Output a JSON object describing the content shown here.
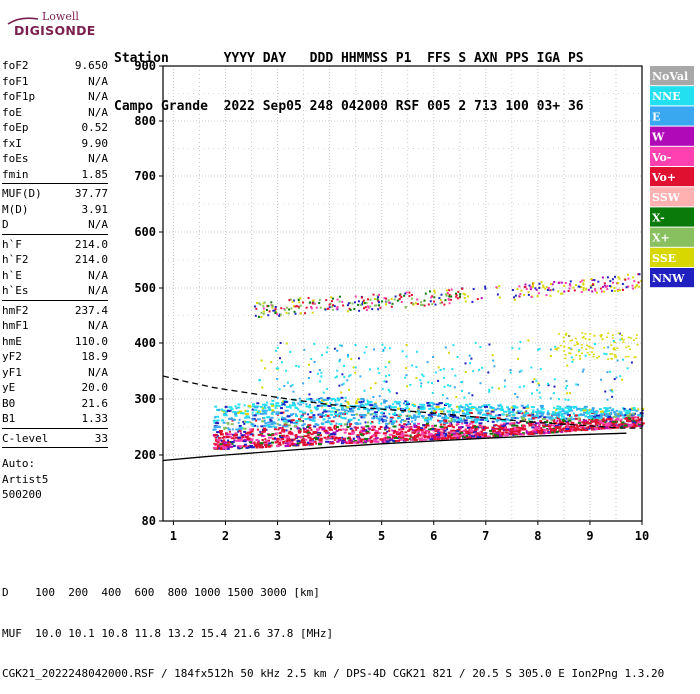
{
  "logo": {
    "line1": "Lowell",
    "line2": "DIGISONDE"
  },
  "header": {
    "labels_row": "Station       YYYY DAY   DDD HHMMSS P1  FFS S AXN PPS IGA PS",
    "values_row": "Campo Grande  2022 Sep05 248 042000 RSF 005 2 713 100 03+ 36"
  },
  "params": {
    "group1": [
      {
        "label": "foF2",
        "value": "9.650"
      },
      {
        "label": "foF1",
        "value": "N/A"
      },
      {
        "label": "foF1p",
        "value": "N/A"
      },
      {
        "label": "foE",
        "value": "N/A"
      },
      {
        "label": "foEp",
        "value": "0.52"
      },
      {
        "label": "fxI",
        "value": "9.90"
      },
      {
        "label": "foEs",
        "value": "N/A"
      },
      {
        "label": "fmin",
        "value": "1.85"
      }
    ],
    "group2": [
      {
        "label": "MUF(D)",
        "value": "37.77"
      },
      {
        "label": "M(D)",
        "value": "3.91"
      },
      {
        "label": "D",
        "value": "N/A"
      }
    ],
    "group3": [
      {
        "label": "h`F",
        "value": "214.0"
      },
      {
        "label": "h`F2",
        "value": "214.0"
      },
      {
        "label": "h`E",
        "value": "N/A"
      },
      {
        "label": "h`Es",
        "value": "N/A"
      }
    ],
    "group4": [
      {
        "label": "hmF2",
        "value": "237.4"
      },
      {
        "label": "hmF1",
        "value": "N/A"
      },
      {
        "label": "hmE",
        "value": "110.0"
      },
      {
        "label": "yF2",
        "value": "18.9"
      },
      {
        "label": "yF1",
        "value": "N/A"
      },
      {
        "label": "yE",
        "value": "20.0"
      },
      {
        "label": "B0",
        "value": "21.6"
      },
      {
        "label": "B1",
        "value": "1.33"
      }
    ],
    "group5": [
      {
        "label": "C-level",
        "value": "33"
      }
    ],
    "auto": [
      "Auto:",
      "Artist5",
      "500200"
    ]
  },
  "chart_data": {
    "type": "scatter",
    "xlim": [
      0.8,
      10.0
    ],
    "ylim": [
      80,
      900
    ],
    "x_ticks": [
      1,
      2,
      3,
      4,
      5,
      6,
      7,
      8,
      9,
      10
    ],
    "y_ticks": [
      80,
      200,
      300,
      400,
      500,
      600,
      700,
      800,
      900
    ],
    "grid": true,
    "x_minor_grid_step": 0.5,
    "legend_position": "right",
    "legend": [
      {
        "name": "NoVal",
        "color": "#a8a8a8"
      },
      {
        "name": "NNE",
        "color": "#22e0f0"
      },
      {
        "name": "E",
        "color": "#3aa8f0"
      },
      {
        "name": "W",
        "color": "#b00ab8"
      },
      {
        "name": "Vo-",
        "color": "#ff40b0"
      },
      {
        "name": "Vo+",
        "color": "#e01030"
      },
      {
        "name": "SSW",
        "color": "#ffb0b0"
      },
      {
        "name": "X-",
        "color": "#0a7a0a"
      },
      {
        "name": "X+",
        "color": "#88c060"
      },
      {
        "name": "SSE",
        "color": "#d8d800"
      },
      {
        "name": "NNW",
        "color": "#2020c0"
      }
    ],
    "ionogram_traces": {
      "f_trace_bottom": {
        "x": [
          1.8,
          3,
          4,
          5,
          6,
          7,
          8,
          9,
          10
        ],
        "y": [
          220,
          225,
          230,
          233,
          238,
          242,
          248,
          255,
          262
        ]
      },
      "f_trace_top": {
        "x": [
          1.8,
          3,
          4,
          5,
          6,
          7,
          8,
          9,
          10
        ],
        "y": [
          290,
          300,
          305,
          300,
          295,
          292,
          290,
          288,
          285
        ]
      },
      "second_hop": {
        "x": [
          2.5,
          3.5,
          4.5,
          5.5,
          6.5,
          7.5,
          8.5,
          9.5,
          10
        ],
        "y": [
          458,
          468,
          472,
          478,
          485,
          492,
          500,
          508,
          515
        ]
      },
      "sparse_upper": {
        "x": [
          3,
          4,
          5,
          6,
          7,
          8,
          9,
          10
        ],
        "y": [
          375,
          372,
          370,
          372,
          375,
          380,
          388,
          400
        ]
      }
    },
    "model_curves": {
      "profile_solid": {
        "x": [
          0.8,
          1.5,
          2,
          3,
          4,
          5,
          6,
          7,
          8,
          9,
          9.7
        ],
        "y": [
          190,
          196,
          200,
          207,
          214,
          220,
          225,
          230,
          234,
          237,
          239
        ]
      },
      "trace_dashed": {
        "x": [
          0.8,
          1.2,
          1.8,
          2.5,
          3.2,
          4,
          5,
          6,
          7,
          8,
          9,
          9.6,
          10
        ],
        "y": [
          341,
          332,
          320,
          310,
          300,
          290,
          282,
          275,
          266,
          258,
          252,
          248,
          248
        ]
      }
    }
  },
  "footer": {
    "line1": "D    100  200  400  600  800 1000 1500 3000 [km]",
    "line2": "MUF  10.0 10.1 10.8 11.8 13.2 15.4 21.6 37.8 [MHz]",
    "line3": "CGK21_2022248042000.RSF / 184fx512h 50 kHz 2.5 km / DPS-4D CGK21 821 / 20.5 S 305.0 E Ion2Png 1.3.20"
  }
}
